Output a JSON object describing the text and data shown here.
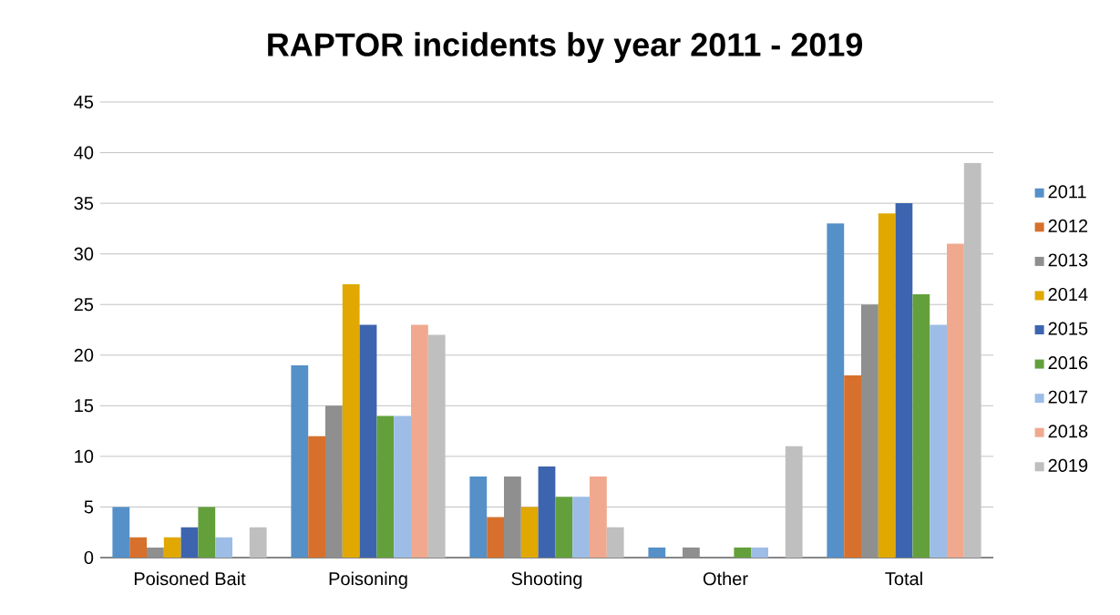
{
  "chart_data": {
    "type": "bar",
    "title": "RAPTOR incidents by year 2011 - 2019",
    "categories": [
      "Poisoned Bait",
      "Poisoning",
      "Shooting",
      "Other",
      "Total"
    ],
    "series": [
      {
        "name": "2011",
        "color": "#5590c8",
        "values": [
          5,
          19,
          8,
          1,
          33
        ]
      },
      {
        "name": "2012",
        "color": "#d6702c",
        "values": [
          2,
          12,
          4,
          0,
          18
        ]
      },
      {
        "name": "2013",
        "color": "#8f8f8f",
        "values": [
          1,
          15,
          8,
          1,
          25
        ]
      },
      {
        "name": "2014",
        "color": "#e0a800",
        "values": [
          2,
          27,
          5,
          0,
          34
        ]
      },
      {
        "name": "2015",
        "color": "#3d64ae",
        "values": [
          3,
          23,
          9,
          0,
          35
        ]
      },
      {
        "name": "2016",
        "color": "#63a03c",
        "values": [
          5,
          14,
          6,
          1,
          26
        ]
      },
      {
        "name": "2017",
        "color": "#9dbde6",
        "values": [
          2,
          14,
          6,
          1,
          23
        ]
      },
      {
        "name": "2018",
        "color": "#f0a98e",
        "values": [
          0,
          23,
          8,
          0,
          31
        ]
      },
      {
        "name": "2019",
        "color": "#bfbfbf",
        "values": [
          3,
          22,
          3,
          11,
          39
        ]
      }
    ],
    "ylim": [
      0,
      45
    ],
    "yticks": [
      0,
      5,
      10,
      15,
      20,
      25,
      30,
      35,
      40,
      45
    ],
    "grid": "y",
    "legend": "right"
  }
}
